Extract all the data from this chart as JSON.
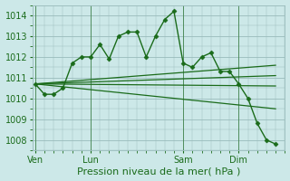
{
  "bg_color": "#cce8e8",
  "grid_color": "#99bbbb",
  "line_color": "#1a6b1a",
  "marker_color": "#1a6b1a",
  "xlabel": "Pression niveau de la mer( hPa )",
  "ylim": [
    1007.5,
    1014.5
  ],
  "yticks": [
    1008,
    1009,
    1010,
    1011,
    1012,
    1013,
    1014
  ],
  "xtick_labels": [
    "Ven",
    "Lun",
    "Sam",
    "Dim"
  ],
  "xtick_positions": [
    0,
    6,
    16,
    22
  ],
  "vline_positions": [
    0,
    6,
    16,
    22
  ],
  "xlim": [
    -0.3,
    27
  ],
  "main_line": {
    "x": [
      0,
      1,
      2,
      3,
      4,
      5,
      6,
      7,
      8,
      9,
      10,
      11,
      12,
      13,
      14,
      15,
      16,
      17,
      18,
      19,
      20,
      21,
      22,
      23,
      24,
      25,
      26
    ],
    "y": [
      1010.7,
      1010.2,
      1010.2,
      1010.5,
      1011.7,
      1012.0,
      1012.0,
      1012.6,
      1011.9,
      1013.0,
      1013.2,
      1013.2,
      1012.0,
      1013.0,
      1013.8,
      1014.2,
      1011.7,
      1011.5,
      1012.0,
      1012.2,
      1011.3,
      1011.3,
      1010.7,
      1010.0,
      1008.8,
      1008.0,
      1007.8
    ]
  },
  "fan_lines": [
    {
      "x": [
        0,
        26
      ],
      "y": [
        1010.7,
        1011.6
      ]
    },
    {
      "x": [
        0,
        26
      ],
      "y": [
        1010.7,
        1011.1
      ]
    },
    {
      "x": [
        0,
        26
      ],
      "y": [
        1010.7,
        1010.6
      ]
    },
    {
      "x": [
        0,
        26
      ],
      "y": [
        1010.7,
        1009.5
      ]
    }
  ],
  "title_fontsize": 7,
  "tick_fontsize": 7,
  "xlabel_fontsize": 8
}
